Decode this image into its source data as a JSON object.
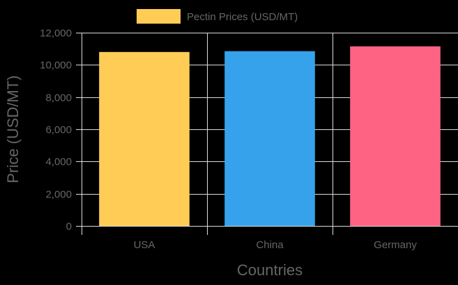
{
  "chart_data": {
    "type": "bar",
    "title": "",
    "categories": [
      "USA",
      "China",
      "Germany"
    ],
    "series": [
      {
        "name": "Pectin Prices (USD/MT)",
        "values": [
          10800,
          10850,
          11150
        ],
        "colors": [
          "#FFCD56",
          "#36A2EB",
          "#FF6384"
        ]
      }
    ],
    "xlabel": "Countries",
    "ylabel": "Price (USD/MT)",
    "ylim": [
      0,
      12000
    ],
    "yticks": [
      "0",
      "2,000",
      "4,000",
      "6,000",
      "8,000",
      "10,000",
      "12,000"
    ],
    "ytick_values": [
      0,
      2000,
      4000,
      6000,
      8000,
      10000,
      12000
    ],
    "grid": true,
    "legend_position": "top",
    "background": "#000000",
    "grid_color": "#DDDDDD",
    "text_color": "#666666",
    "legend_swatch_color": "#FFCD56"
  }
}
